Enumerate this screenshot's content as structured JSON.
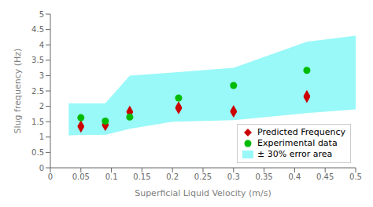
{
  "chart_data": {
    "type": "scatter",
    "xlabel": "Superficial Liquid Velocity (m/s)",
    "ylabel": "Slug frequency (Hz)",
    "xlim": [
      0,
      0.5
    ],
    "ylim": [
      0,
      5
    ],
    "xticks": [
      0,
      0.05,
      0.1,
      0.15,
      0.2,
      0.25,
      0.3,
      0.35,
      0.4,
      0.45,
      0.5
    ],
    "yticks": [
      0,
      0.5,
      1,
      1.5,
      2,
      2.5,
      3,
      3.5,
      4,
      4.5,
      5
    ],
    "series": [
      {
        "name": "Predicted Frequency",
        "type": "scatter",
        "marker": "diamond",
        "color": "#CC0000",
        "x": [
          0.05,
          0.05,
          0.09,
          0.09,
          0.13,
          0.13,
          0.21,
          0.21,
          0.3,
          0.3,
          0.42,
          0.42
        ],
        "values": [
          1.33,
          1.36,
          1.38,
          1.41,
          1.81,
          1.83,
          1.93,
          1.97,
          1.82,
          1.85,
          2.3,
          2.34
        ]
      },
      {
        "name": "Experimental data",
        "type": "scatter",
        "marker": "circle",
        "color": "#00BB00",
        "x": [
          0.05,
          0.09,
          0.13,
          0.21,
          0.3,
          0.42
        ],
        "values": [
          1.63,
          1.52,
          1.65,
          2.27,
          2.68,
          3.17
        ]
      },
      {
        "name": "± 30% error area",
        "type": "area",
        "color": "#00EEEE",
        "x": [
          0.03,
          0.05,
          0.09,
          0.13,
          0.2,
          0.3,
          0.42,
          0.5
        ],
        "lower": [
          1.05,
          1.07,
          1.07,
          1.27,
          1.5,
          1.55,
          1.78,
          1.9
        ],
        "upper": [
          2.1,
          2.1,
          2.1,
          3.0,
          3.1,
          3.25,
          4.1,
          4.3
        ]
      }
    ],
    "legend": "lower right",
    "grid": false
  }
}
